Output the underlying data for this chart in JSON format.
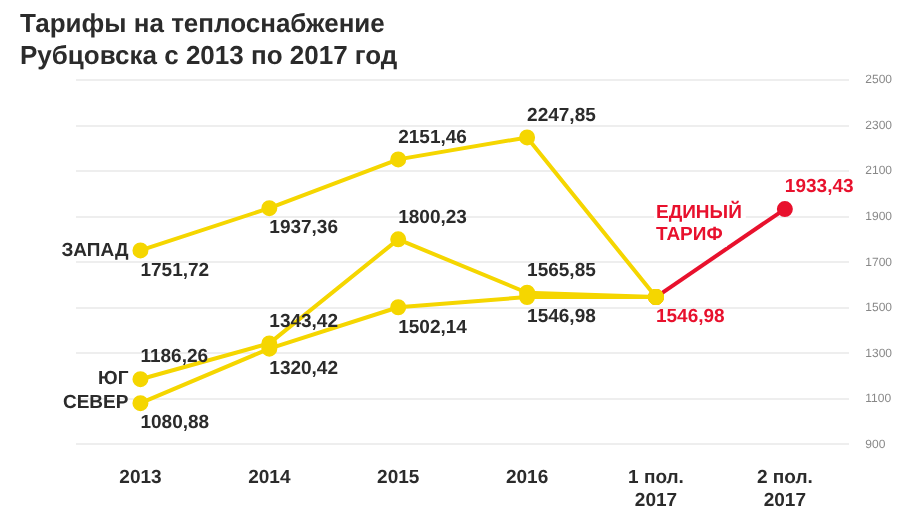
{
  "chart_data": {
    "type": "line",
    "title": "Тарифы на теплоснабжение Рубцовска с 2013 по 2017 год",
    "categories": [
      "2013",
      "2014",
      "2015",
      "2016",
      "1 пол. 2017",
      "2 пол. 2017"
    ],
    "series": [
      {
        "name": "ЗАПАД",
        "color": "#f5d600",
        "values": [
          1751.72,
          1937.36,
          2151.46,
          2247.85,
          1546.98,
          null
        ],
        "value_labels": [
          "1751,72",
          "1937,36",
          "2151,46",
          "2247,85",
          null,
          null
        ]
      },
      {
        "name": "ЮГ",
        "color": "#f5d600",
        "values": [
          1186.26,
          1343.42,
          1800.23,
          1565.85,
          1546.98,
          null
        ],
        "value_labels": [
          "1186,26",
          "1343,42",
          "1800,23",
          "1565,85",
          null,
          null
        ]
      },
      {
        "name": "СЕВЕР",
        "color": "#f5d600",
        "values": [
          1080.88,
          1320.42,
          1502.14,
          1546.98,
          1546.98,
          null
        ],
        "value_labels": [
          "1080,88",
          "1320,42",
          "1502,14",
          "1546,98",
          null,
          null
        ]
      },
      {
        "name": "ЕДИНЫЙ ТАРИФ",
        "color": "#e8112d",
        "values": [
          null,
          null,
          null,
          null,
          1546.98,
          1933.43
        ],
        "value_labels": [
          null,
          null,
          null,
          null,
          "1546,98",
          "1933,43"
        ]
      }
    ],
    "ylim": [
      900,
      2500
    ],
    "yticks": [
      900,
      1100,
      1300,
      1500,
      1700,
      1900,
      2100,
      2300,
      2500
    ],
    "grid": "y",
    "marker": "circle",
    "line_style": "solid",
    "legend": false
  }
}
